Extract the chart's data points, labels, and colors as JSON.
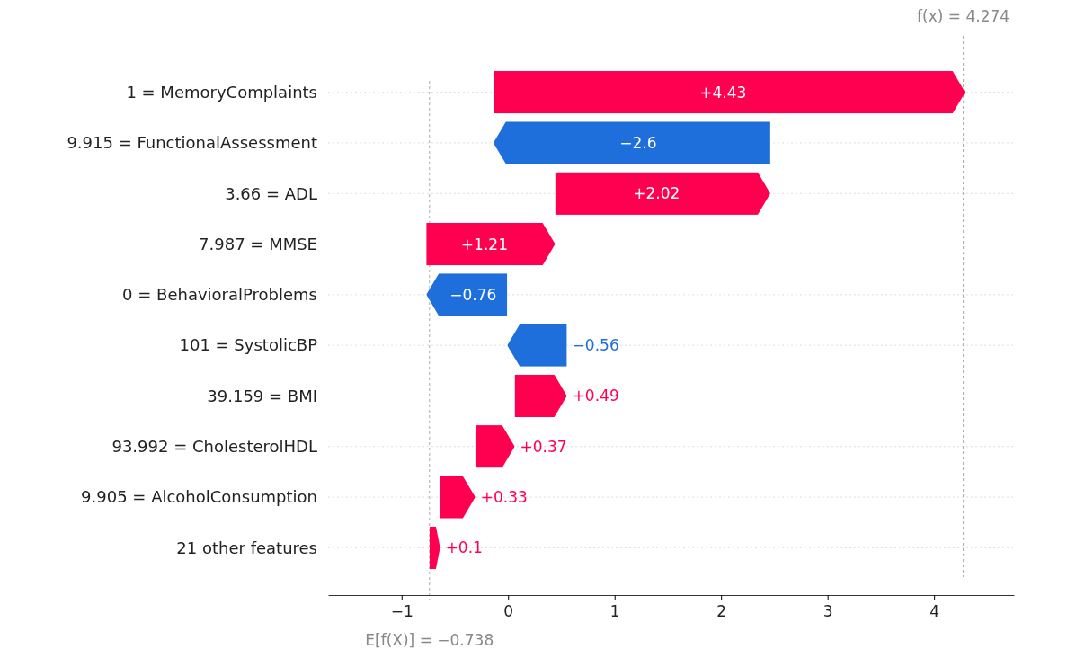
{
  "chart_data": {
    "type": "bar",
    "orientation": "horizontal",
    "categories": [
      "1 = MemoryComplaints",
      "9.915 = FunctionalAssessment",
      "3.66 = ADL",
      "7.987 = MMSE",
      "0 = BehavioralProblems",
      "101 = SystolicBP",
      "39.159 = BMI",
      "93.992 = CholesterolHDL",
      "9.905 = AlcoholConsumption",
      "21 other features"
    ],
    "values": [
      4.43,
      -2.6,
      2.02,
      1.21,
      -0.76,
      -0.56,
      0.49,
      0.37,
      0.33,
      0.1
    ],
    "base": [
      -0.138,
      2.462,
      0.442,
      -0.768,
      -0.008,
      0.552,
      0.062,
      -0.308,
      -0.638,
      -0.738
    ],
    "colors": [
      "#ff0051",
      "#1e6fdc",
      "#ff0051",
      "#ff0051",
      "#1e6fdc",
      "#1e6fdc",
      "#ff0051",
      "#ff0051",
      "#ff0051",
      "#ff0051"
    ],
    "value_labels": [
      "+4.43",
      "−2.6",
      "+2.02",
      "+1.21",
      "−0.76",
      "−0.56",
      "+0.49",
      "+0.37",
      "+0.33",
      "+0.1"
    ],
    "xlim": [
      -1.69,
      4.75
    ],
    "xticks": [
      {
        "value": -1,
        "label": "−1"
      },
      0,
      1,
      2,
      3,
      4
    ],
    "grid": "y",
    "ref_lines": [
      {
        "axis": "x",
        "value": 4.274,
        "label": "f(x) = 4.274",
        "color": "#aaaaaa",
        "line_style": "dashed"
      },
      {
        "axis": "x",
        "value": -0.738,
        "label": "E[f(X)] = −0.738",
        "color": "#aaaaaa",
        "line_style": "dashed"
      }
    ]
  }
}
